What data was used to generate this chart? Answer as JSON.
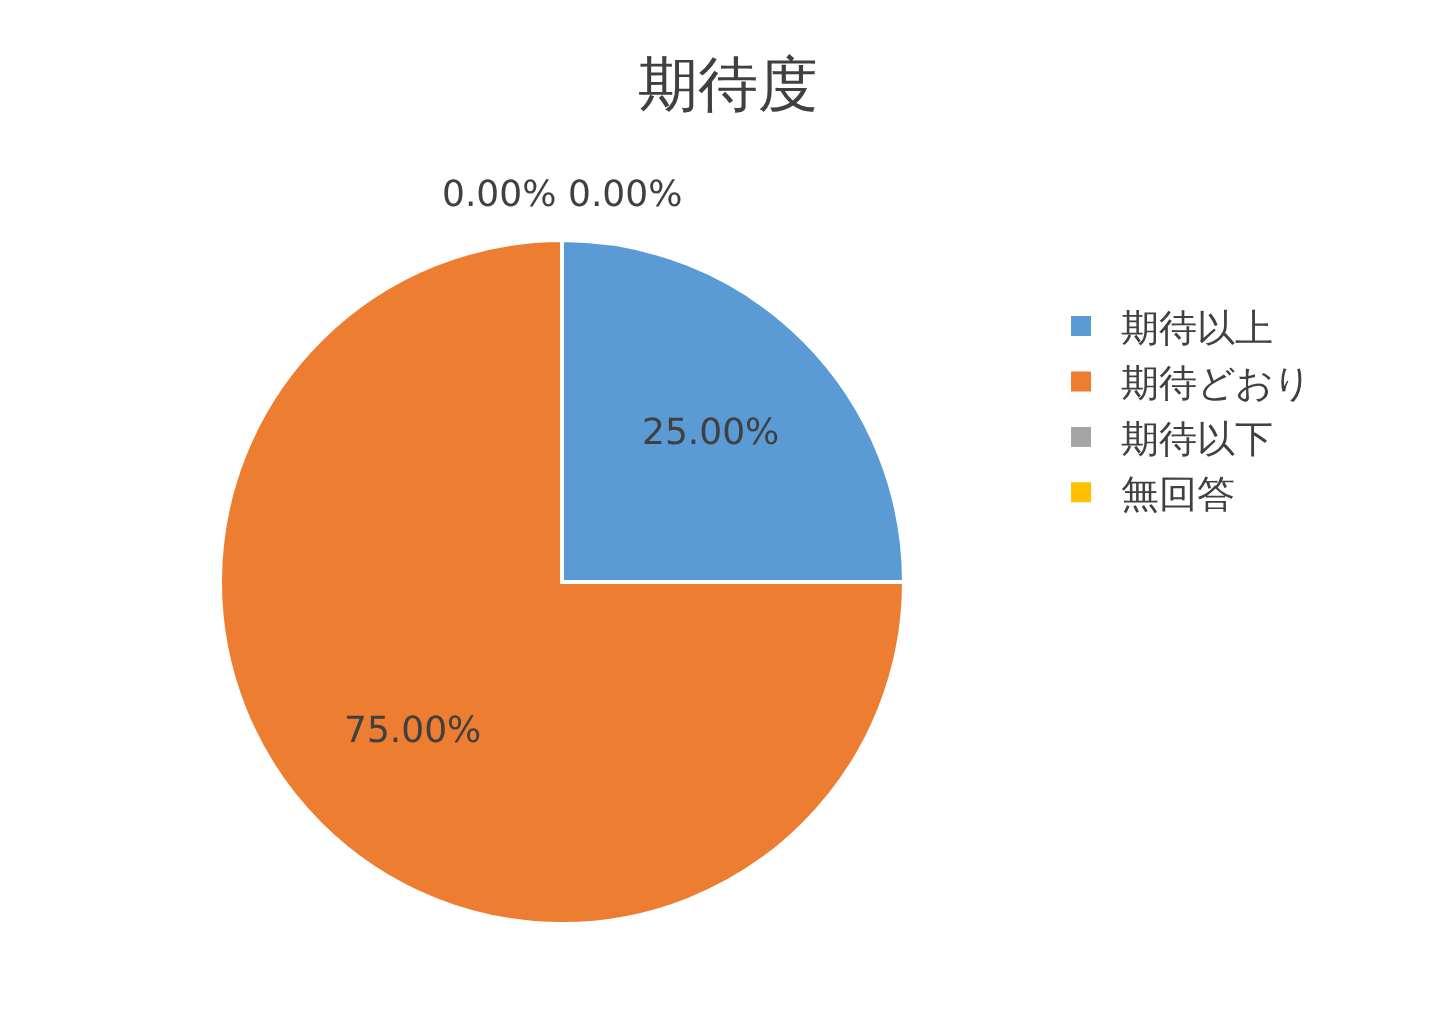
{
  "chart_data": {
    "type": "pie",
    "title": "期待度",
    "categories": [
      "期待以上",
      "期待どおり",
      "期待以下",
      "無回答"
    ],
    "values": [
      25,
      75,
      0,
      0
    ],
    "value_labels": [
      "25.00%",
      "75.00%",
      "0.00%",
      "0.00%"
    ],
    "colors": [
      "#5b9bd5",
      "#ed7d31",
      "#a5a5a5",
      "#ffc000"
    ],
    "legend": "right"
  }
}
